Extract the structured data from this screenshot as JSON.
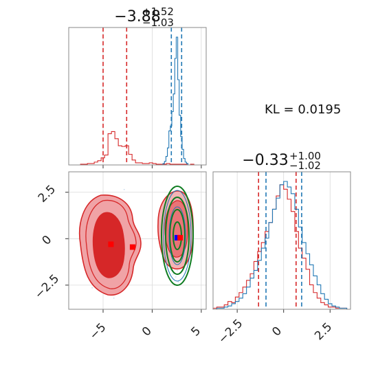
{
  "chart_data": [
    {
      "panel": "top-left",
      "type": "histogram",
      "title": {
        "value": "−3.88",
        "sup": "+1.52",
        "sub": "−1.03"
      },
      "xlim": [
        -8.5,
        5.5
      ],
      "xticks": [
        -5,
        0,
        5
      ],
      "grid": true,
      "colors": {
        "red": "#d62728",
        "blue": "#1f77b4"
      },
      "series": [
        {
          "color": "#d62728",
          "binwidth": 0.35,
          "quantiles": [
            -5.0,
            -2.6
          ],
          "bins_x": [
            -7.3,
            -6.95,
            -6.6,
            -6.25,
            -5.9,
            -5.55,
            -5.2,
            -4.85,
            -4.5,
            -4.15,
            -3.8,
            -3.45,
            -3.1,
            -2.75,
            -2.4,
            -2.05,
            -1.7,
            -1.35,
            -1.0,
            -0.65,
            -0.3,
            0.05,
            0.4,
            0.75,
            1.1,
            1.45,
            1.8,
            2.15,
            2.5,
            2.85,
            3.2,
            3.55,
            3.9,
            4.25
          ],
          "counts": [
            1,
            1,
            2,
            2,
            4,
            6,
            10,
            14,
            44,
            47,
            37,
            27,
            26,
            27,
            15,
            7,
            3,
            3,
            2,
            2,
            3,
            2,
            1,
            1,
            1,
            2,
            1,
            1,
            1,
            1,
            1,
            0,
            1,
            0
          ]
        },
        {
          "color": "#1f77b4",
          "binwidth": 0.15,
          "quantiles": [
            1.95,
            3.0
          ],
          "bins_x": [
            1.1,
            1.25,
            1.4,
            1.55,
            1.7,
            1.85,
            2.0,
            2.15,
            2.3,
            2.45,
            2.6,
            2.75,
            2.9,
            3.05,
            3.2,
            3.35,
            3.5
          ],
          "counts": [
            2,
            5,
            12,
            24,
            48,
            55,
            75,
            100,
            150,
            180,
            120,
            70,
            40,
            22,
            9,
            4,
            2
          ]
        }
      ]
    },
    {
      "panel": "bottom-left",
      "type": "contour",
      "xlim": [
        -8.5,
        5.5
      ],
      "ylim": [
        -3.8,
        3.6
      ],
      "xticks": [
        -5,
        0,
        5
      ],
      "yticks": [
        2.5,
        0.0,
        -2.5
      ],
      "grid": true,
      "markers": [
        {
          "color": "#ff0000",
          "x": -4.2,
          "y": -0.3
        },
        {
          "color": "#ff0000",
          "x": -2.0,
          "y": -0.45
        },
        {
          "color": "#0000ff",
          "x": 2.55,
          "y": 0.05
        },
        {
          "color": "#ff0000",
          "x": 2.85,
          "y": 0.05
        }
      ]
    },
    {
      "panel": "bottom-right",
      "type": "histogram",
      "title": {
        "value": "−0.33",
        "sup": "+1.00",
        "sub": "−1.02"
      },
      "xlim": [
        -3.8,
        3.6
      ],
      "xticks": [
        -2.5,
        0.0,
        2.5
      ],
      "grid": true,
      "series": [
        {
          "color": "#d62728",
          "binwidth": 0.2,
          "quantiles": [
            -1.35,
            0.67
          ],
          "bins_x": [
            -3.8,
            -3.6,
            -3.4,
            -3.2,
            -3.0,
            -2.8,
            -2.6,
            -2.4,
            -2.2,
            -2.0,
            -1.8,
            -1.6,
            -1.4,
            -1.2,
            -1.0,
            -0.8,
            -0.6,
            -0.4,
            -0.2,
            0.0,
            0.2,
            0.4,
            0.6,
            0.8,
            1.0,
            1.2,
            1.4,
            1.6,
            1.8,
            2.0,
            2.2,
            2.4,
            2.6,
            2.8,
            3.0,
            3.2,
            3.4
          ],
          "counts": [
            1,
            2,
            2,
            4,
            7,
            6,
            11,
            15,
            20,
            26,
            32,
            43,
            52,
            60,
            70,
            78,
            90,
            102,
            112,
            108,
            99,
            88,
            70,
            55,
            46,
            36,
            22,
            15,
            10,
            6,
            4,
            2,
            2,
            1,
            1,
            1,
            0
          ]
        },
        {
          "color": "#1f77b4",
          "binwidth": 0.2,
          "quantiles": [
            -0.95,
            0.97
          ],
          "bins_x": [
            -3.6,
            -3.4,
            -3.2,
            -3.0,
            -2.8,
            -2.6,
            -2.4,
            -2.2,
            -2.0,
            -1.8,
            -1.6,
            -1.4,
            -1.2,
            -1.0,
            -0.8,
            -0.6,
            -0.4,
            -0.2,
            0.0,
            0.2,
            0.4,
            0.6,
            0.8,
            1.0,
            1.2,
            1.4,
            1.6,
            1.8,
            2.0,
            2.2,
            2.4,
            2.6,
            2.8,
            3.0,
            3.2
          ],
          "counts": [
            1,
            1,
            2,
            3,
            5,
            7,
            10,
            14,
            20,
            28,
            35,
            44,
            55,
            64,
            78,
            90,
            100,
            112,
            115,
            110,
            104,
            90,
            74,
            60,
            50,
            40,
            30,
            22,
            14,
            9,
            5,
            3,
            2,
            1,
            1
          ]
        }
      ]
    }
  ],
  "annotation": {
    "kl_text": "KL = 0.0195"
  }
}
